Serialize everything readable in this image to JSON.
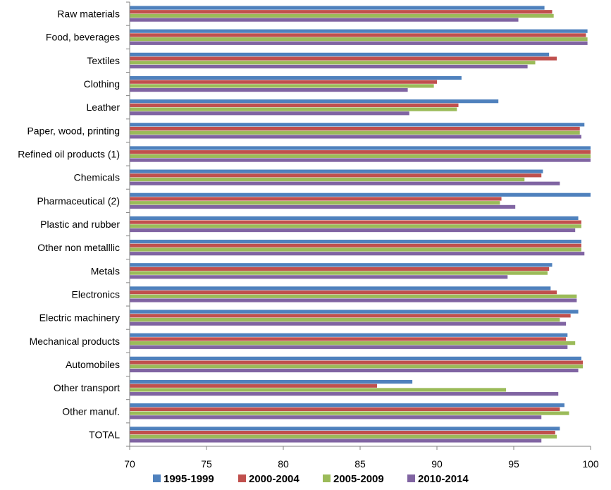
{
  "chart_data": {
    "type": "bar",
    "orientation": "horizontal",
    "categories": [
      "Raw materials",
      "Food, beverages",
      "Textiles",
      "Clothing",
      "Leather",
      "Paper, wood, printing",
      "Refined oil products (1)",
      "Chemicals",
      "Pharmaceutical (2)",
      "Plastic and rubber",
      "Other non metalllic",
      "Metals",
      "Electronics",
      "Electric machinery",
      "Mechanical products",
      "Automobiles",
      "Other transport",
      "Other manuf.",
      "TOTAL"
    ],
    "series": [
      {
        "name": "1995-1999",
        "color": "#4F81BD",
        "values": [
          97.0,
          99.8,
          97.3,
          91.6,
          94.0,
          99.6,
          100.0,
          96.9,
          100.0,
          99.2,
          99.4,
          97.5,
          97.4,
          99.2,
          98.5,
          99.4,
          88.4,
          98.3,
          98.0
        ]
      },
      {
        "name": "2000-2004",
        "color": "#C0504D",
        "values": [
          97.5,
          99.7,
          97.8,
          90.0,
          91.4,
          99.3,
          100.0,
          96.8,
          94.2,
          99.4,
          99.4,
          97.3,
          97.8,
          98.7,
          98.4,
          99.5,
          86.1,
          98.0,
          97.7
        ]
      },
      {
        "name": "2005-2009",
        "color": "#9BBB59",
        "values": [
          97.6,
          99.8,
          96.4,
          89.8,
          91.3,
          99.3,
          100.0,
          95.7,
          94.1,
          99.4,
          99.4,
          97.2,
          99.1,
          98.0,
          99.0,
          99.5,
          94.5,
          98.6,
          97.8
        ]
      },
      {
        "name": "2010-2014",
        "color": "#8064A2",
        "values": [
          95.3,
          99.8,
          95.9,
          88.1,
          88.2,
          99.4,
          100.0,
          98.0,
          95.1,
          99.0,
          99.6,
          94.6,
          99.1,
          98.4,
          98.5,
          99.2,
          97.9,
          96.8,
          96.8
        ]
      }
    ],
    "xlim": [
      70,
      100
    ],
    "xticks": [
      "70",
      "75",
      "80",
      "85",
      "90",
      "95",
      "100"
    ],
    "title": "",
    "xlabel": "",
    "ylabel": "",
    "grid": false,
    "legend_position": "bottom"
  }
}
